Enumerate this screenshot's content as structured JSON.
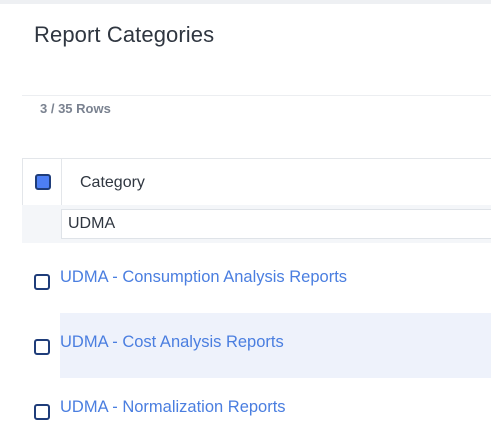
{
  "page": {
    "title": "Report Categories",
    "row_count": "3 / 35 Rows"
  },
  "grid": {
    "header": {
      "select_all_checked": true,
      "column_label": "Category"
    },
    "filter": {
      "value": "UDMA"
    },
    "rows": [
      {
        "label": "UDMA - Consumption Analysis Reports",
        "checked": false
      },
      {
        "label": "UDMA - Cost Analysis Reports",
        "checked": false
      },
      {
        "label": "UDMA - Normalization Reports",
        "checked": false
      }
    ]
  },
  "colors": {
    "link": "#4a7ee0",
    "checkbox_border": "#1f3d7a",
    "checkbox_checked": "#4d7ff5",
    "alt_row": "#eef2fb"
  }
}
